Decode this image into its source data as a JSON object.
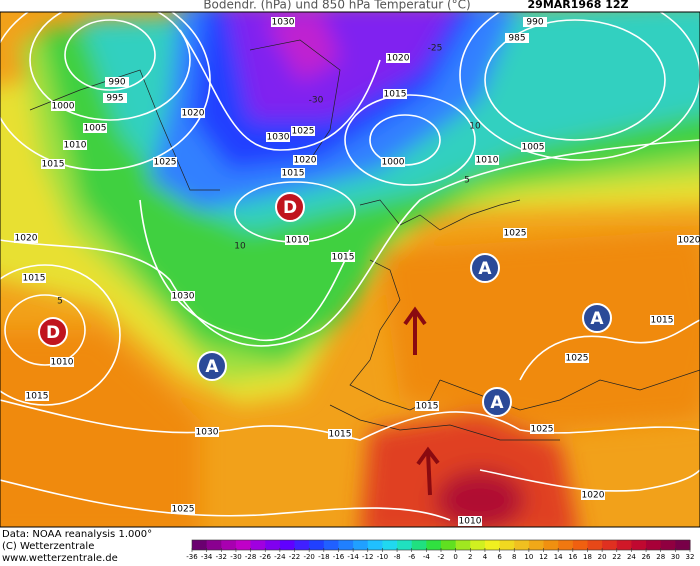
{
  "header": {
    "title": "Bodendr. (hPa) und 850 hPa Temperatur (°C)",
    "date": "29MAR1968 12Z"
  },
  "map": {
    "isobar_labels": [
      1030,
      990,
      985,
      990,
      995,
      1000,
      1005,
      1010,
      1015,
      1020,
      1025,
      1030,
      1025,
      1020,
      1015,
      1020,
      1015,
      1000,
      1010,
      1005,
      1020,
      1015,
      1030,
      1010,
      1015,
      1025,
      1020,
      1015,
      1025,
      1010,
      1015,
      1030,
      1015,
      1015,
      1025,
      1020,
      1025,
      1010
    ],
    "temperature_labels": [
      -30,
      -25,
      10,
      5,
      5,
      10
    ],
    "pressure_centers": [
      {
        "label": "D",
        "kind": "low"
      },
      {
        "label": "D",
        "kind": "low"
      },
      {
        "label": "A",
        "kind": "high"
      },
      {
        "label": "A",
        "kind": "high"
      },
      {
        "label": "A",
        "kind": "high"
      },
      {
        "label": "A",
        "kind": "high"
      }
    ],
    "low_color": "#c0141e",
    "high_color": "#2b4a98"
  },
  "footer": {
    "source": "Data: NOAA reanalysis 1.000°",
    "copyright": "(C) Wetterzentrale",
    "website": "www.wetterzentrale.de"
  },
  "color_scale": {
    "ticks": [
      -36,
      -34,
      -32,
      -30,
      -28,
      -26,
      -24,
      -22,
      -20,
      -18,
      -16,
      -14,
      -12,
      -10,
      -8,
      -6,
      -4,
      -2,
      0,
      2,
      4,
      6,
      8,
      10,
      12,
      14,
      16,
      18,
      20,
      22,
      24,
      26,
      28,
      30,
      32
    ],
    "colors": [
      "#6a0070",
      "#8a0090",
      "#a800b0",
      "#c000c8",
      "#a000e0",
      "#8000f0",
      "#6000ff",
      "#4020ff",
      "#2040ff",
      "#2060ff",
      "#2080ff",
      "#20a0ff",
      "#20c0ff",
      "#20d8f0",
      "#20e0c0",
      "#20e080",
      "#30e040",
      "#60e020",
      "#a0e820",
      "#d0f020",
      "#f0f020",
      "#f0d820",
      "#f0c020",
      "#f0a818",
      "#f09010",
      "#f07810",
      "#f06010",
      "#e84818",
      "#e03020",
      "#d01828",
      "#c00830",
      "#a80038",
      "#900040",
      "#780048"
    ]
  }
}
